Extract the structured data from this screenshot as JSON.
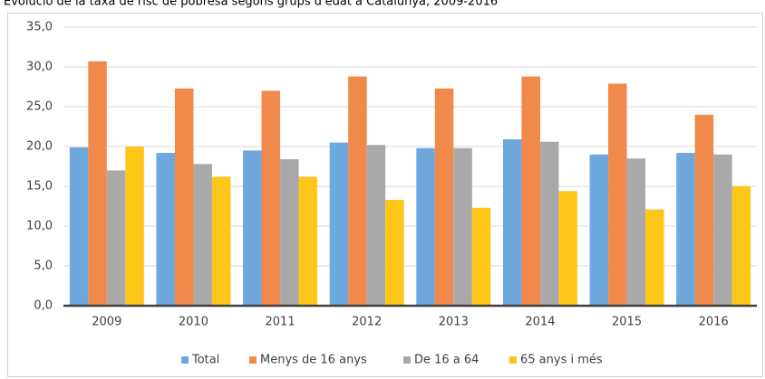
{
  "chart_data": {
    "type": "bar",
    "title": "Evolució de la taxa de risc de pobresa segons grups d'edat a Catalunya, 2009-2016",
    "categories": [
      "2009",
      "2010",
      "2011",
      "2012",
      "2013",
      "2014",
      "2015",
      "2016"
    ],
    "series": [
      {
        "name": "Total",
        "color": "#6fa8dc",
        "values": [
          19.9,
          19.2,
          19.5,
          20.5,
          19.8,
          20.9,
          19.0,
          19.2
        ]
      },
      {
        "name": "Menys de 16 anys",
        "color": "#f0894a",
        "values": [
          30.7,
          27.3,
          27.0,
          28.8,
          27.3,
          28.8,
          27.9,
          24.0
        ]
      },
      {
        "name": "De 16 a 64",
        "color": "#a9a9a9",
        "values": [
          17.0,
          17.8,
          18.4,
          20.2,
          19.8,
          20.6,
          18.5,
          19.0
        ]
      },
      {
        "name": "65 anys i més",
        "color": "#ffc61a",
        "values": [
          20.0,
          16.2,
          16.2,
          13.3,
          12.3,
          14.4,
          12.1,
          15.0
        ]
      }
    ],
    "ylim": [
      0,
      35
    ],
    "yticks": [
      {
        "value": 0,
        "label": "0,0"
      },
      {
        "value": 5,
        "label": "5,0"
      },
      {
        "value": 10,
        "label": "10,0"
      },
      {
        "value": 15,
        "label": "15,0"
      },
      {
        "value": 20,
        "label": "20,0"
      },
      {
        "value": 25,
        "label": "25,0"
      },
      {
        "value": 30,
        "label": "30,0"
      },
      {
        "value": 35,
        "label": "35,0"
      }
    ],
    "grid": true,
    "legend": "bottom"
  }
}
